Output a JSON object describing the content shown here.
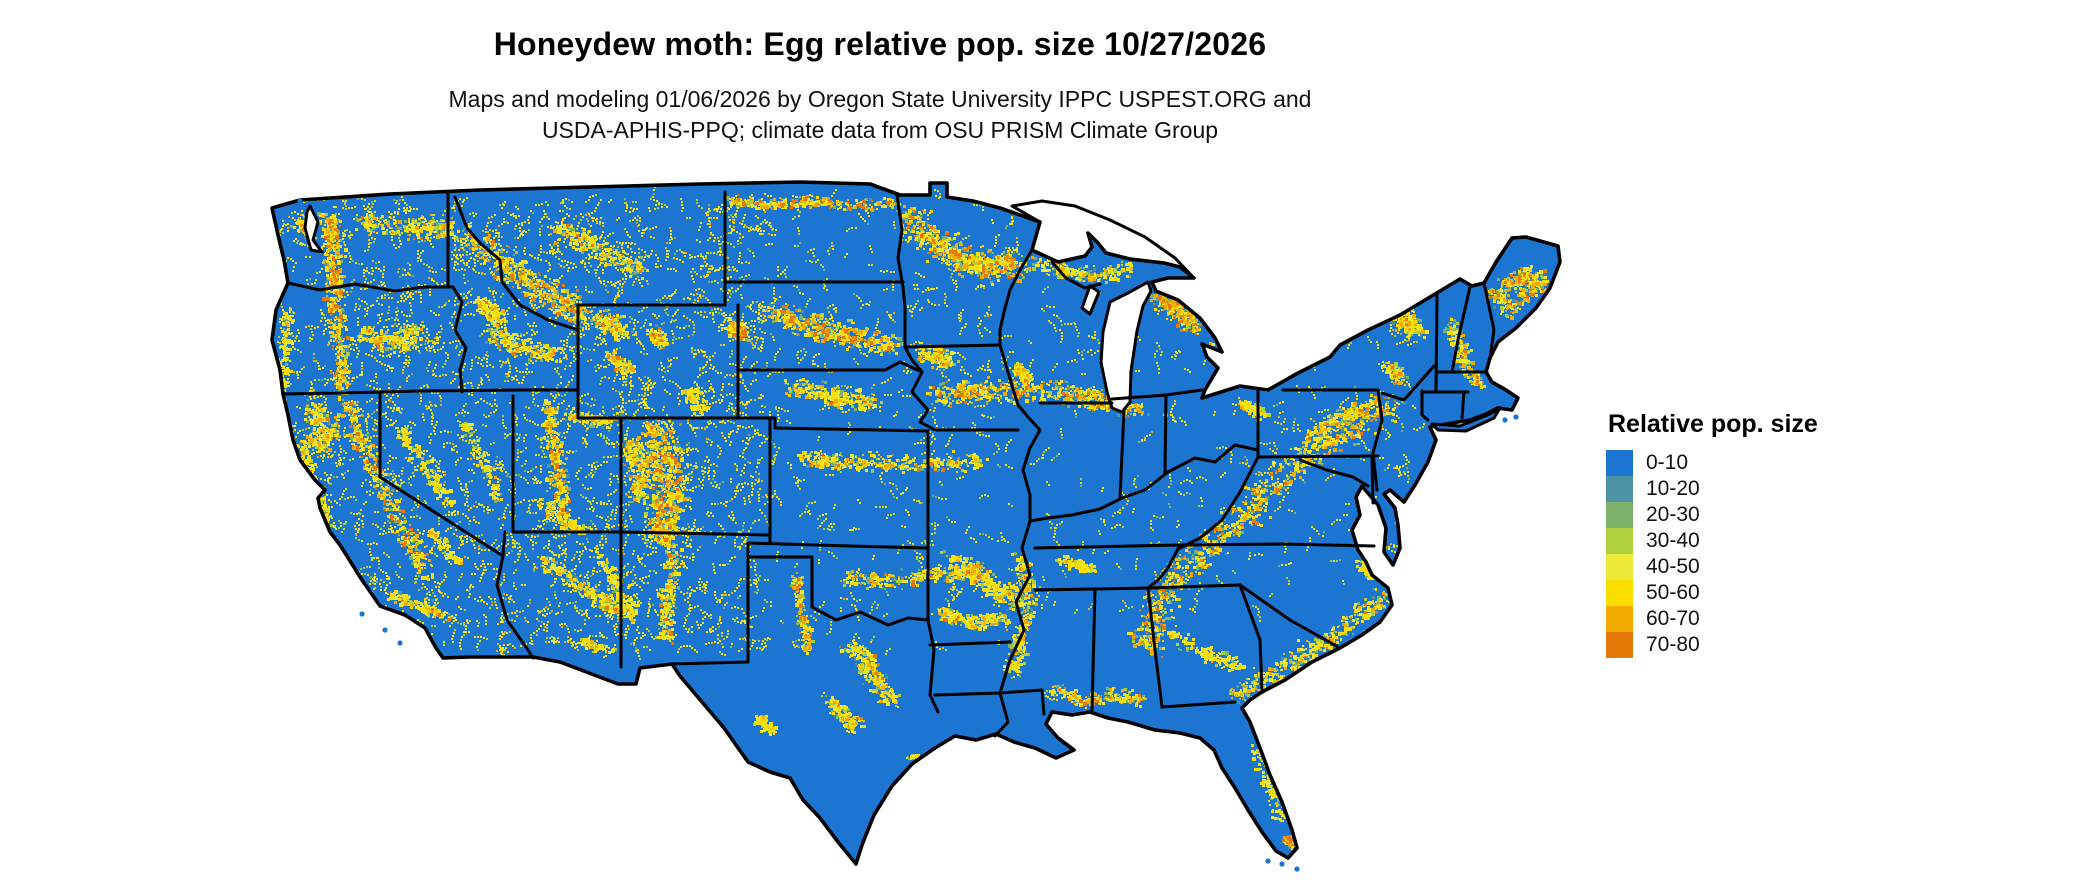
{
  "header": {
    "title": "Honeydew moth: Egg relative pop. size 10/27/2026",
    "subtitle_line1": "Maps and modeling 01/06/2026 by Oregon State University IPPC USPEST.ORG and",
    "subtitle_line2": "USDA-APHIS-PPQ; climate data from OSU PRISM Climate Group"
  },
  "legend": {
    "title": "Relative pop. size",
    "items": [
      {
        "label": "0-10",
        "color": "#1B75D1"
      },
      {
        "label": "10-20",
        "color": "#4E93A5"
      },
      {
        "label": "20-30",
        "color": "#7CB269"
      },
      {
        "label": "30-40",
        "color": "#AFD03C"
      },
      {
        "label": "40-50",
        "color": "#ECE93B"
      },
      {
        "label": "50-60",
        "color": "#FADE00"
      },
      {
        "label": "60-70",
        "color": "#F2AB00"
      },
      {
        "label": "70-80",
        "color": "#E67A09"
      }
    ]
  },
  "map": {
    "region": "conterminous United States",
    "quantity": "Relative pop. size",
    "base_fill": "#1B75D1",
    "boundary_color": "#000000",
    "water_color": "#FFFFFF",
    "bins": [
      "0-10",
      "10-20",
      "20-30",
      "30-40",
      "40-50",
      "50-60",
      "60-70",
      "70-80"
    ]
  }
}
